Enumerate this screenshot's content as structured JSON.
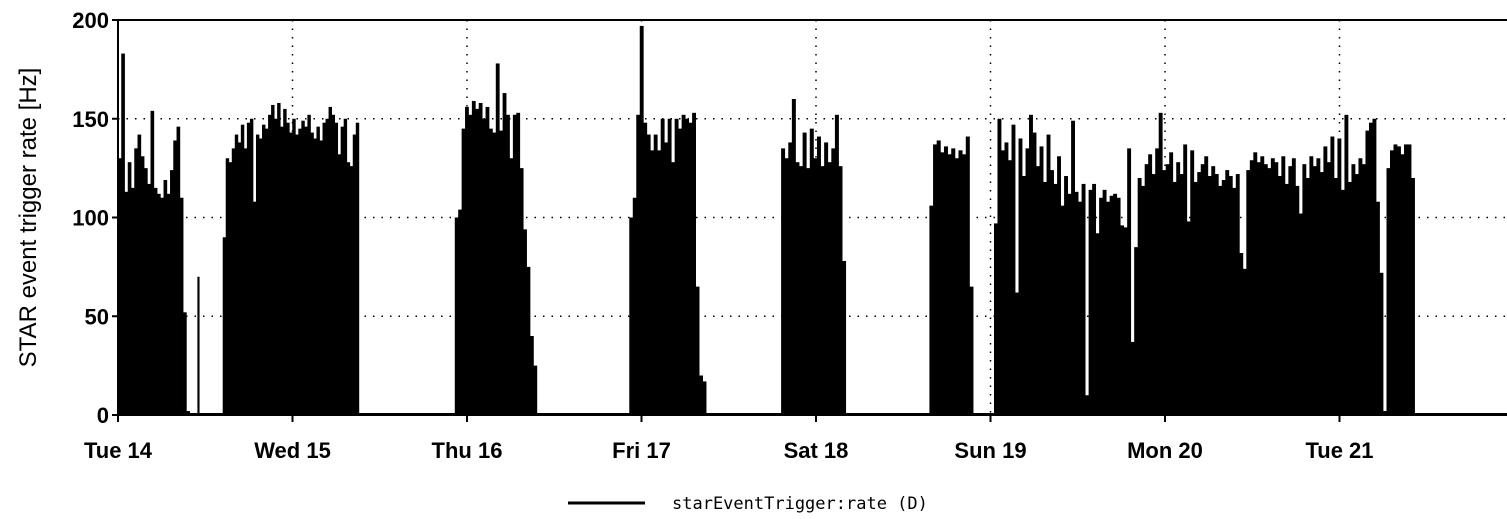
{
  "chart_data": {
    "type": "bar",
    "title": "",
    "xlabel": "",
    "ylabel": "STAR event trigger rate [Hz]",
    "ylim": [
      0,
      200
    ],
    "yticks": [
      0,
      50,
      100,
      150,
      200
    ],
    "xlim": [
      0,
      8.65
    ],
    "x_unit": "days from Tue 14 00:00",
    "xticks": [
      {
        "label": "Tue 14",
        "value": 0
      },
      {
        "label": "Wed 15",
        "value": 1
      },
      {
        "label": "Thu 16",
        "value": 2
      },
      {
        "label": "Fri 17",
        "value": 3
      },
      {
        "label": "Sat 18",
        "value": 4
      },
      {
        "label": "Sun 19",
        "value": 5
      },
      {
        "label": "Mon 20",
        "value": 6
      },
      {
        "label": "Tue 21",
        "value": 7
      }
    ],
    "grid": true,
    "legend": {
      "position": "bottom-center"
    },
    "series": [
      {
        "name": "starEventTrigger:rate (D)",
        "color": "#000000",
        "segments": [
          {
            "start": 0.0,
            "end": 0.41,
            "values": [
              130,
              183,
              113,
              128,
              115,
              135,
              142,
              131,
              125,
              117,
              154,
              115,
              112,
              110,
              119,
              112,
              124,
              139,
              146,
              110,
              52,
              2
            ]
          },
          {
            "start": 0.455,
            "end": 0.465,
            "values": [
              70
            ]
          },
          {
            "start": 0.6,
            "end": 1.38,
            "values": [
              90,
              130,
              128,
              135,
              142,
              138,
              147,
              135,
              148,
              150,
              108,
              142,
              140,
              147,
              145,
              152,
              157,
              150,
              158,
              146,
              155,
              148,
              143,
              150,
              142,
              145,
              149,
              146,
              152,
              143,
              140,
              146,
              139,
              148,
              150,
              156,
              152,
              148,
              132,
              146,
              150,
              128,
              126,
              142,
              148
            ]
          },
          {
            "start": 1.93,
            "end": 2.4,
            "values": [
              100,
              104,
              145,
              156,
              152,
              159,
              155,
              158,
              150,
              156,
              145,
              143,
              178,
              144,
              163,
              152,
              130,
              152,
              153,
              125,
              94,
              75,
              40,
              25
            ]
          },
          {
            "start": 2.93,
            "end": 3.37,
            "values": [
              100,
              110,
              152,
              197,
              148,
              142,
              134,
              142,
              134,
              150,
              138,
              150,
              128,
              150,
              145,
              152,
              150,
              148,
              153,
              65,
              20,
              17
            ]
          },
          {
            "start": 3.8,
            "end": 4.17,
            "values": [
              135,
              130,
              138,
              160,
              128,
              126,
              143,
              125,
              145,
              130,
              141,
              126,
              138,
              128,
              135,
              152,
              126,
              78
            ]
          },
          {
            "start": 4.65,
            "end": 4.9,
            "values": [
              106,
              137,
              139,
              133,
              136,
              132,
              135,
              130,
              134,
              132,
              141,
              65
            ]
          },
          {
            "start": 5.02,
            "end": 7.43,
            "values": [
              97,
              150,
              134,
              138,
              129,
              147,
              62,
              140,
              121,
              135,
              152,
              143,
              126,
              136,
              118,
              142,
              124,
              117,
              131,
              106,
              121,
              112,
              149,
              113,
              108,
              117,
              10,
              114,
              117,
              92,
              110,
              114,
              108,
              111,
              112,
              110,
              96,
              95,
              135,
              37,
              85,
              120,
              116,
              127,
              132,
              122,
              135,
              153,
              124,
              127,
              133,
              118,
              128,
              122,
              137,
              98,
              134,
              118,
              123,
              127,
              131,
              121,
              126,
              122,
              116,
              119,
              124,
              121,
              115,
              122,
              82,
              74,
              124,
              129,
              133,
              128,
              131,
              127,
              125,
              130,
              128,
              121,
              131,
              117,
              126,
              130,
              116,
              102,
              127,
              120,
              131,
              126,
              130,
              123,
              136,
              128,
              141,
              120,
              140,
              114,
              152,
              118,
              127,
              122,
              130,
              127,
              144,
              148,
              150,
              108,
              72,
              2,
              125,
              134,
              137,
              136,
              132,
              137,
              137,
              120
            ]
          }
        ]
      }
    ]
  }
}
